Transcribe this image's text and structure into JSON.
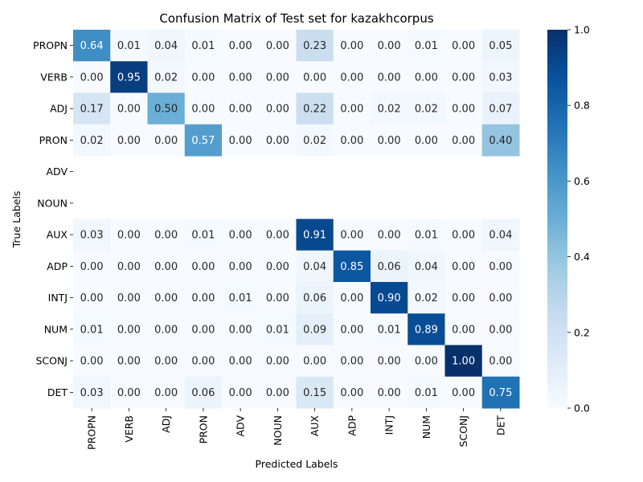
{
  "chart_data": {
    "type": "heatmap",
    "title": "Confusion Matrix of Test set for kazakhcorpus",
    "xlabel": "Predicted Labels",
    "ylabel": "True Labels",
    "x_categories": [
      "PROPN",
      "VERB",
      "ADJ",
      "PRON",
      "ADV",
      "NOUN",
      "AUX",
      "ADP",
      "INTJ",
      "NUM",
      "SCONJ",
      "DET"
    ],
    "y_categories": [
      "PROPN",
      "VERB",
      "ADJ",
      "PRON",
      "ADV",
      "NOUN",
      "AUX",
      "ADP",
      "INTJ",
      "NUM",
      "SCONJ",
      "DET"
    ],
    "values": [
      [
        0.64,
        0.01,
        0.04,
        0.01,
        0.0,
        0.0,
        0.23,
        0.0,
        0.0,
        0.01,
        0.0,
        0.05
      ],
      [
        0.0,
        0.95,
        0.02,
        0.0,
        0.0,
        0.0,
        0.0,
        0.0,
        0.0,
        0.0,
        0.0,
        0.03
      ],
      [
        0.17,
        0.0,
        0.5,
        0.0,
        0.0,
        0.0,
        0.22,
        0.0,
        0.02,
        0.02,
        0.0,
        0.07
      ],
      [
        0.02,
        0.0,
        0.0,
        0.57,
        0.0,
        0.0,
        0.02,
        0.0,
        0.0,
        0.0,
        0.0,
        0.4
      ],
      null,
      null,
      [
        0.03,
        0.0,
        0.0,
        0.01,
        0.0,
        0.0,
        0.91,
        0.0,
        0.0,
        0.01,
        0.0,
        0.04
      ],
      [
        0.0,
        0.0,
        0.0,
        0.0,
        0.0,
        0.0,
        0.04,
        0.85,
        0.06,
        0.04,
        0.0,
        0.0
      ],
      [
        0.0,
        0.0,
        0.0,
        0.0,
        0.01,
        0.0,
        0.06,
        0.0,
        0.9,
        0.02,
        0.0,
        0.0
      ],
      [
        0.01,
        0.0,
        0.0,
        0.0,
        0.0,
        0.01,
        0.09,
        0.0,
        0.01,
        0.89,
        0.0,
        0.0
      ],
      [
        0.0,
        0.0,
        0.0,
        0.0,
        0.0,
        0.0,
        0.0,
        0.0,
        0.0,
        0.0,
        1.0,
        0.0
      ],
      [
        0.03,
        0.0,
        0.0,
        0.06,
        0.0,
        0.0,
        0.15,
        0.0,
        0.0,
        0.01,
        0.0,
        0.75
      ]
    ],
    "value_format": "2 decimals",
    "colormap": "Blues",
    "colorbar": {
      "range": [
        0.0,
        1.0
      ],
      "ticks": [
        "0.0",
        "0.2",
        "0.4",
        "0.6",
        "0.8",
        "1.0"
      ]
    },
    "grid": false
  }
}
